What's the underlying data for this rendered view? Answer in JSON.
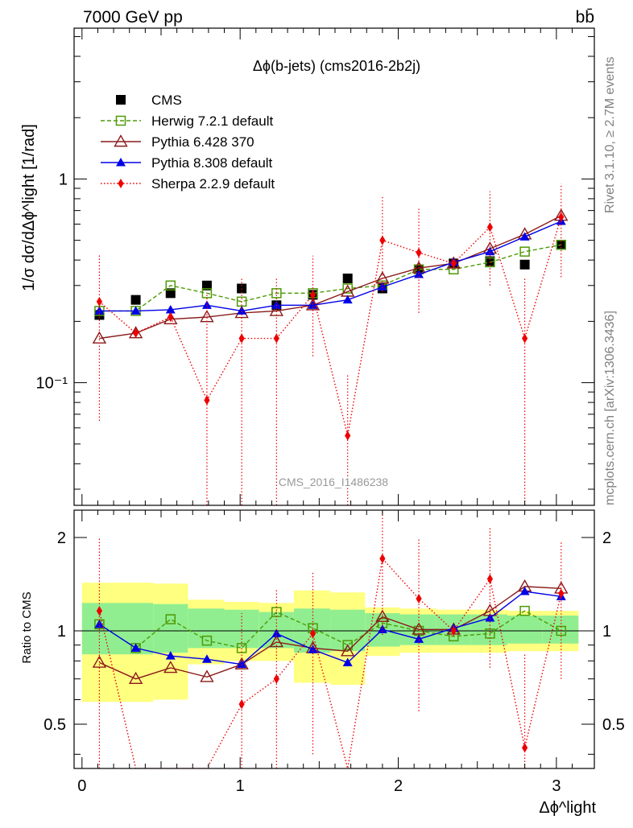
{
  "header": {
    "left": "7000 GeV pp",
    "right": "bb̄"
  },
  "side_labels": {
    "rivet": "Rivet 3.1.10, ≥ 2.7M events",
    "mcplots": "mcplots.cern.ch [arXiv:1306.3436]"
  },
  "chart_data": [
    {
      "type": "line",
      "title": "Δϕ(b-jets) (cms2016-2b2j)",
      "watermark": "CMS_2016_I1486238",
      "ylabel": "1/σ dσ/dΔϕ^light [1/rad]",
      "yscale": "log",
      "ylim": [
        0.025,
        5.5
      ],
      "xlim": [
        -0.05,
        3.24
      ],
      "yticks": [
        {
          "value": 0.1,
          "label": "10⁻¹"
        },
        {
          "value": 1,
          "label": "1"
        }
      ],
      "x": [
        0.11,
        0.34,
        0.56,
        0.79,
        1.01,
        1.23,
        1.46,
        1.68,
        1.9,
        2.13,
        2.35,
        2.58,
        2.8,
        3.03
      ],
      "series": [
        {
          "name": "CMS",
          "color": "#000000",
          "marker": "square-filled",
          "line": "none",
          "values": [
            0.215,
            0.255,
            0.275,
            0.3,
            0.29,
            0.24,
            0.27,
            0.325,
            0.29,
            0.36,
            0.385,
            0.395,
            0.38,
            0.475
          ]
        },
        {
          "name": "Herwig 7.2.1 default",
          "color": "#4e9a06",
          "marker": "square-open",
          "line": "dashed",
          "values": [
            0.225,
            0.225,
            0.3,
            0.275,
            0.25,
            0.275,
            0.275,
            0.29,
            0.3,
            0.36,
            0.36,
            0.39,
            0.44,
            0.475
          ]
        },
        {
          "name": "Pythia 6.428 370",
          "color": "#8b1a1a",
          "marker": "triangle-open",
          "line": "solid",
          "values": [
            0.165,
            0.175,
            0.205,
            0.21,
            0.22,
            0.225,
            0.24,
            0.28,
            0.325,
            0.365,
            0.385,
            0.455,
            0.535,
            0.66
          ]
        },
        {
          "name": "Pythia 8.308 default",
          "color": "#0000e6",
          "marker": "triangle-filled",
          "line": "solid",
          "values": [
            0.225,
            0.225,
            0.228,
            0.24,
            0.225,
            0.24,
            0.24,
            0.255,
            0.295,
            0.34,
            0.39,
            0.44,
            0.52,
            0.62
          ]
        },
        {
          "name": "Sherpa 2.2.9 default",
          "color": "#ee0000",
          "marker": "diamond-filled",
          "line": "dotted",
          "values": [
            0.25,
            0.175,
            0.21,
            0.082,
            0.165,
            0.165,
            0.27,
            0.055,
            0.5,
            0.435,
            0.385,
            0.58,
            0.165,
            0.65
          ],
          "err_low": [
            0.065,
            0.17,
            0.2,
            0.025,
            0.025,
            0.025,
            0.135,
            0.025,
            0.28,
            0.22,
            0.37,
            0.3,
            0.025,
            0.33
          ],
          "err_high": [
            0.43,
            0.18,
            0.22,
            0.27,
            0.33,
            0.33,
            0.42,
            0.11,
            0.82,
            0.72,
            0.4,
            0.87,
            0.33,
            0.95
          ]
        }
      ]
    },
    {
      "type": "line",
      "ylabel": "Ratio to CMS",
      "xlabel": "Δϕ^light",
      "ylim": [
        0.36,
        2.45
      ],
      "yscale": "ratio",
      "yticks": [
        {
          "value": 0.5,
          "label": "0.5"
        },
        {
          "value": 1,
          "label": "1"
        },
        {
          "value": 2,
          "label": "2"
        }
      ],
      "xticks": [
        {
          "value": 0,
          "label": "0"
        },
        {
          "value": 1,
          "label": "1"
        },
        {
          "value": 2,
          "label": "2"
        },
        {
          "value": 3,
          "label": "3"
        }
      ],
      "bands": {
        "edges": [
          0.0,
          0.45,
          0.67,
          0.9,
          1.12,
          1.34,
          1.57,
          1.79,
          2.01,
          2.24,
          2.46,
          2.69,
          2.91,
          3.14
        ],
        "inner": [
          [
            0.84,
            1.23
          ],
          [
            0.85,
            1.22
          ],
          [
            0.88,
            1.18
          ],
          [
            0.88,
            1.17
          ],
          [
            0.88,
            1.15
          ],
          [
            0.85,
            1.18
          ],
          [
            0.86,
            1.17
          ],
          [
            0.89,
            1.14
          ],
          [
            0.9,
            1.13
          ],
          [
            0.9,
            1.13
          ],
          [
            0.9,
            1.13
          ],
          [
            0.91,
            1.12
          ],
          [
            0.91,
            1.12
          ],
          [
            0.91,
            1.12
          ]
        ],
        "outer": [
          [
            0.59,
            1.43
          ],
          [
            0.6,
            1.42
          ],
          [
            0.78,
            1.26
          ],
          [
            0.8,
            1.24
          ],
          [
            0.8,
            1.23
          ],
          [
            0.68,
            1.35
          ],
          [
            0.67,
            1.33
          ],
          [
            0.83,
            1.19
          ],
          [
            0.85,
            1.18
          ],
          [
            0.85,
            1.17
          ],
          [
            0.85,
            1.17
          ],
          [
            0.86,
            1.16
          ],
          [
            0.86,
            1.16
          ],
          [
            0.86,
            1.16
          ]
        ]
      },
      "x": [
        0.11,
        0.34,
        0.56,
        0.79,
        1.01,
        1.23,
        1.46,
        1.68,
        1.9,
        2.13,
        2.35,
        2.58,
        2.8,
        3.03
      ],
      "series": [
        {
          "name": "Herwig 7.2.1 default",
          "color": "#4e9a06",
          "marker": "square-open",
          "line": "dashed",
          "values": [
            1.05,
            0.88,
            1.09,
            0.93,
            0.88,
            1.15,
            1.02,
            0.9,
            1.06,
            1.0,
            0.96,
            0.98,
            1.16,
            1.0
          ]
        },
        {
          "name": "Pythia 6.428 370",
          "color": "#8b1a1a",
          "marker": "triangle-open",
          "line": "solid",
          "values": [
            0.79,
            0.7,
            0.76,
            0.71,
            0.78,
            0.92,
            0.88,
            0.86,
            1.11,
            1.01,
            1.01,
            1.16,
            1.39,
            1.37
          ]
        },
        {
          "name": "Pythia 8.308 default",
          "color": "#0000e6",
          "marker": "triangle-filled",
          "line": "solid",
          "values": [
            1.05,
            0.88,
            0.83,
            0.81,
            0.78,
            0.98,
            0.87,
            0.79,
            1.01,
            0.94,
            1.02,
            1.1,
            1.34,
            1.29
          ]
        },
        {
          "name": "Sherpa 2.2.9 default",
          "color": "#ee0000",
          "marker": "diamond-filled",
          "line": "dotted",
          "values": [
            1.16,
            null,
            null,
            null,
            0.58,
            0.7,
            0.98,
            null,
            1.71,
            1.27,
            1.0,
            1.47,
            0.42,
            1.32
          ],
          "err_low": [
            0.3,
            0.36,
            0.36,
            0.36,
            0.36,
            0.36,
            0.4,
            0.36,
            0.97,
            0.55,
            0.96,
            0.76,
            0.36,
            0.7
          ],
          "err_high": [
            2.0,
            0.36,
            0.36,
            0.36,
            1.14,
            1.37,
            1.56,
            0.36,
            2.45,
            2.0,
            1.04,
            2.16,
            0.85,
            1.94
          ]
        }
      ]
    }
  ]
}
